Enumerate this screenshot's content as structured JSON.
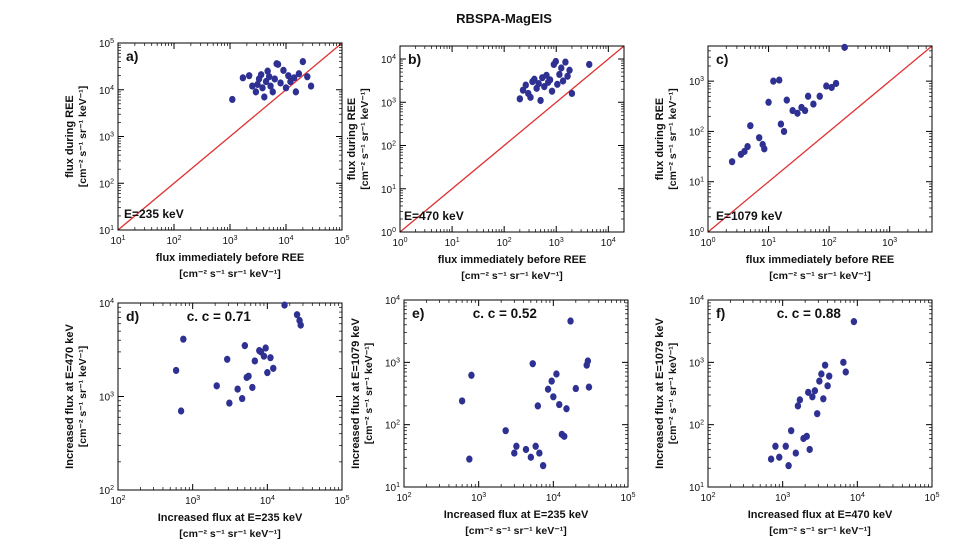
{
  "figure_title": "RBSPA-MagEIS",
  "colors": {
    "points": "#2e3192",
    "diagonal": "#e03030",
    "axes": "#000000"
  },
  "chart_data": [
    {
      "type": "scatter",
      "panel": "a)",
      "annotation": "E=235 keV",
      "cc": "",
      "xlabel": "flux immediately before REE",
      "xunit": "[cm^-2 s^-1 sr^-1 keV^-1]",
      "ylabel": "flux during REE",
      "yunit": "[cm^-2 s^-1 sr^-1 keV^-1]",
      "xscale": "log",
      "yscale": "log",
      "xlim": [
        10,
        100000
      ],
      "ylim": [
        10,
        100000
      ],
      "xticks": [
        "10^1",
        "10^2",
        "10^3",
        "10^4",
        "10^5"
      ],
      "yticks": [
        "10^1",
        "10^2",
        "10^3",
        "10^4",
        "10^5"
      ],
      "diagonal": true,
      "points": [
        [
          1100,
          6200
        ],
        [
          1700,
          18000
        ],
        [
          2200,
          20000
        ],
        [
          2500,
          12000
        ],
        [
          2900,
          9000
        ],
        [
          3100,
          13000
        ],
        [
          3300,
          17000
        ],
        [
          3600,
          21000
        ],
        [
          3800,
          11000
        ],
        [
          4100,
          7000
        ],
        [
          4400,
          15000
        ],
        [
          4700,
          25000
        ],
        [
          5000,
          19000
        ],
        [
          5300,
          12000
        ],
        [
          5800,
          9000
        ],
        [
          6300,
          17000
        ],
        [
          6800,
          36000
        ],
        [
          7200,
          35000
        ],
        [
          8000,
          14000
        ],
        [
          9000,
          26000
        ],
        [
          10000,
          11000
        ],
        [
          11000,
          20000
        ],
        [
          12000,
          15000
        ],
        [
          14000,
          18000
        ],
        [
          15000,
          9000
        ],
        [
          17000,
          22000
        ],
        [
          20000,
          40000
        ],
        [
          24000,
          19000
        ],
        [
          28000,
          12000
        ]
      ]
    },
    {
      "type": "scatter",
      "panel": "b)",
      "annotation": "E=470 keV",
      "cc": "",
      "xlabel": "flux immediately before REE",
      "xunit": "[cm^-2 s^-1 sr^-1 keV^-1]",
      "ylabel": "flux during REE",
      "yunit": "[cm^-2 s^-1 sr^-1 keV^-1]",
      "xscale": "log",
      "yscale": "log",
      "xlim": [
        1,
        20000
      ],
      "ylim": [
        1,
        20000
      ],
      "xticks": [
        "10^0",
        "10^1",
        "10^2",
        "10^3",
        "10^4"
      ],
      "yticks": [
        "10^0",
        "10^1",
        "10^2",
        "10^3",
        "10^4"
      ],
      "diagonal": true,
      "points": [
        [
          200,
          1200
        ],
        [
          230,
          1900
        ],
        [
          260,
          2500
        ],
        [
          290,
          1600
        ],
        [
          320,
          1300
        ],
        [
          350,
          3000
        ],
        [
          380,
          3400
        ],
        [
          420,
          2100
        ],
        [
          460,
          2700
        ],
        [
          500,
          1100
        ],
        [
          540,
          3700
        ],
        [
          590,
          2300
        ],
        [
          650,
          4200
        ],
        [
          700,
          2900
        ],
        [
          760,
          3300
        ],
        [
          830,
          1800
        ],
        [
          900,
          7500
        ],
        [
          980,
          8800
        ],
        [
          1050,
          2600
        ],
        [
          1150,
          4400
        ],
        [
          1250,
          6200
        ],
        [
          1350,
          3100
        ],
        [
          1500,
          8500
        ],
        [
          1650,
          4000
        ],
        [
          1800,
          5500
        ],
        [
          2000,
          1600
        ],
        [
          4300,
          7500
        ]
      ]
    },
    {
      "type": "scatter",
      "panel": "c)",
      "annotation": "E=1079 keV",
      "cc": "",
      "xlabel": "flux immediately before REE",
      "xunit": "[cm^-2 s^-1 sr^-1 keV^-1]",
      "ylabel": "flux during REE",
      "yunit": "[cm^-2 s^-1 sr^-1 keV^-1]",
      "xscale": "log",
      "yscale": "log",
      "xlim": [
        1,
        5000
      ],
      "ylim": [
        1,
        5000
      ],
      "xticks": [
        "10^0",
        "10^1",
        "10^2",
        "10^3"
      ],
      "yticks": [
        "10^0",
        "10^1",
        "10^2",
        "10^3"
      ],
      "diagonal": true,
      "points": [
        [
          2.5,
          25
        ],
        [
          3.5,
          35
        ],
        [
          4,
          40
        ],
        [
          4.5,
          50
        ],
        [
          5,
          130
        ],
        [
          7,
          75
        ],
        [
          8,
          55
        ],
        [
          8.5,
          45
        ],
        [
          10,
          380
        ],
        [
          12,
          1000
        ],
        [
          15,
          1050
        ],
        [
          16,
          140
        ],
        [
          18,
          100
        ],
        [
          20,
          420
        ],
        [
          25,
          260
        ],
        [
          30,
          230
        ],
        [
          35,
          300
        ],
        [
          40,
          260
        ],
        [
          45,
          500
        ],
        [
          55,
          350
        ],
        [
          70,
          500
        ],
        [
          90,
          800
        ],
        [
          110,
          750
        ],
        [
          130,
          900
        ],
        [
          180,
          4700
        ]
      ]
    },
    {
      "type": "scatter",
      "panel": "d)",
      "annotation": "",
      "cc": "c. c = 0.71",
      "xlabel": "Increased flux at E=235 keV",
      "xunit": "[cm^-2 s^-1 sr^-1 keV^-1]",
      "ylabel": "Increased flux at E=470 keV",
      "yunit": "[cm^-2 s^-1 sr^-1 keV^-1]",
      "xscale": "log",
      "yscale": "log",
      "xlim": [
        100,
        100000
      ],
      "ylim": [
        100,
        10000
      ],
      "xticks": [
        "10^2",
        "10^3",
        "10^4",
        "10^5"
      ],
      "yticks": [
        "10^2",
        "10^3",
        "10^4"
      ],
      "diagonal": false,
      "points": [
        [
          600,
          1900
        ],
        [
          700,
          700
        ],
        [
          750,
          4100
        ],
        [
          2100,
          1300
        ],
        [
          2900,
          2500
        ],
        [
          3100,
          850
        ],
        [
          4000,
          1200
        ],
        [
          4600,
          950
        ],
        [
          5000,
          3500
        ],
        [
          5300,
          1600
        ],
        [
          5600,
          1650
        ],
        [
          6300,
          1250
        ],
        [
          6800,
          2400
        ],
        [
          7800,
          3100
        ],
        [
          8200,
          3000
        ],
        [
          9000,
          2700
        ],
        [
          9500,
          3300
        ],
        [
          10000,
          1800
        ],
        [
          11000,
          2600
        ],
        [
          12000,
          2000
        ],
        [
          17000,
          9500
        ],
        [
          25000,
          7500
        ],
        [
          27000,
          6500
        ],
        [
          28000,
          5800
        ]
      ]
    },
    {
      "type": "scatter",
      "panel": "e)",
      "annotation": "",
      "cc": "c. c = 0.52",
      "xlabel": "Increased flux at E=235 keV",
      "xunit": "[cm^-2 s^-1 sr^-1 keV^-1]",
      "ylabel": "Increased flux at E=1079 keV",
      "yunit": "[cm^-2 s^-1 sr^-1 keV^-1]",
      "xscale": "log",
      "yscale": "log",
      "xlim": [
        100,
        100000
      ],
      "ylim": [
        10,
        10000
      ],
      "xticks": [
        "10^2",
        "10^3",
        "10^4",
        "10^5"
      ],
      "yticks": [
        "10^1",
        "10^2",
        "10^3",
        "10^4"
      ],
      "diagonal": false,
      "points": [
        [
          600,
          240
        ],
        [
          750,
          28
        ],
        [
          800,
          620
        ],
        [
          2300,
          80
        ],
        [
          3000,
          35
        ],
        [
          3200,
          45
        ],
        [
          4300,
          40
        ],
        [
          5000,
          30
        ],
        [
          5300,
          950
        ],
        [
          5800,
          45
        ],
        [
          6200,
          200
        ],
        [
          6500,
          35
        ],
        [
          7300,
          22
        ],
        [
          8500,
          370
        ],
        [
          9500,
          500
        ],
        [
          10000,
          280
        ],
        [
          11000,
          650
        ],
        [
          12000,
          210
        ],
        [
          13000,
          70
        ],
        [
          14000,
          65
        ],
        [
          15000,
          180
        ],
        [
          17000,
          4600
        ],
        [
          20000,
          380
        ],
        [
          28000,
          900
        ],
        [
          29000,
          1050
        ],
        [
          30000,
          400
        ]
      ]
    },
    {
      "type": "scatter",
      "panel": "f)",
      "annotation": "",
      "cc": "c. c = 0.88",
      "xlabel": "Increased flux at E=470 keV",
      "xunit": "[cm^-2 s^-1 sr^-1 keV^-1]",
      "ylabel": "Increased flux at E=1079 keV",
      "yunit": "[cm^-2 s^-1 sr^-1 keV^-1]",
      "xscale": "log",
      "yscale": "log",
      "xlim": [
        100,
        100000
      ],
      "ylim": [
        10,
        10000
      ],
      "xticks": [
        "10^2",
        "10^3",
        "10^4",
        "10^5"
      ],
      "yticks": [
        "10^1",
        "10^2",
        "10^3",
        "10^4"
      ],
      "diagonal": false,
      "points": [
        [
          700,
          28
        ],
        [
          800,
          45
        ],
        [
          900,
          30
        ],
        [
          1100,
          45
        ],
        [
          1200,
          22
        ],
        [
          1300,
          80
        ],
        [
          1500,
          35
        ],
        [
          1600,
          200
        ],
        [
          1700,
          250
        ],
        [
          1900,
          60
        ],
        [
          2100,
          65
        ],
        [
          2200,
          330
        ],
        [
          2300,
          40
        ],
        [
          2500,
          280
        ],
        [
          2700,
          350
        ],
        [
          2900,
          150
        ],
        [
          3100,
          500
        ],
        [
          3300,
          650
        ],
        [
          3500,
          260
        ],
        [
          3700,
          900
        ],
        [
          4000,
          420
        ],
        [
          4200,
          600
        ],
        [
          6500,
          1000
        ],
        [
          7000,
          700
        ],
        [
          9000,
          4500
        ]
      ]
    }
  ]
}
